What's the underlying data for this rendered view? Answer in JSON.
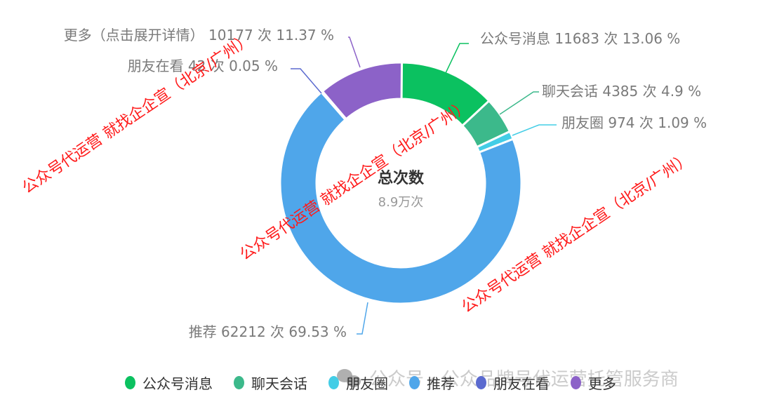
{
  "chart_data": {
    "type": "pie",
    "subtype": "donut",
    "title": "总次数",
    "center_value": "8.9万次",
    "total": 89473,
    "unit": "次",
    "legend_position": "bottom",
    "categories": [
      "公众号消息",
      "聊天会话",
      "朋友圈",
      "推荐",
      "朋友在看",
      "更多"
    ],
    "series": [
      {
        "name": "公众号消息",
        "value": 11683,
        "percent": 13.06,
        "color": "#0bc160"
      },
      {
        "name": "聊天会话",
        "value": 4385,
        "percent": 4.9,
        "color": "#3cb98b"
      },
      {
        "name": "朋友圈",
        "value": 974,
        "percent": 1.09,
        "color": "#43cde6"
      },
      {
        "name": "推荐",
        "value": 62212,
        "percent": 69.53,
        "color": "#4fa6ea"
      },
      {
        "name": "朋友在看",
        "value": 42,
        "percent": 0.05,
        "color": "#5b6acf"
      },
      {
        "name": "更多",
        "value": 10177,
        "percent": 11.37,
        "color": "#8c62c8"
      }
    ]
  },
  "labels": {
    "gzh": "公众号消息 11683 次 13.06 %",
    "chat": "聊天会话 4385 次 4.9 %",
    "moments": "朋友圈 974 次 1.09 %",
    "recommend": "推荐 62212 次 69.53 %",
    "friends_watch": "朋友在看 42 次 0.05 %",
    "more": "更多（点击展开详情） 10177 次 11.37 %"
  },
  "center": {
    "title": "总次数",
    "value": "8.9万次"
  },
  "legend": {
    "items": [
      {
        "label": "公众号消息",
        "color": "#0bc160"
      },
      {
        "label": "聊天会话",
        "color": "#3cb98b"
      },
      {
        "label": "朋友圈",
        "color": "#43cde6"
      },
      {
        "label": "推荐",
        "color": "#4fa6ea"
      },
      {
        "label": "朋友在看",
        "color": "#5b6acf"
      },
      {
        "label": "更多",
        "color": "#8c62c8"
      }
    ]
  },
  "watermarks": {
    "diagonal": "公众号代运营 就找企企宣（北京/广州）",
    "bottom": "公众号 · 公众品牌号代运营托管服务商"
  }
}
